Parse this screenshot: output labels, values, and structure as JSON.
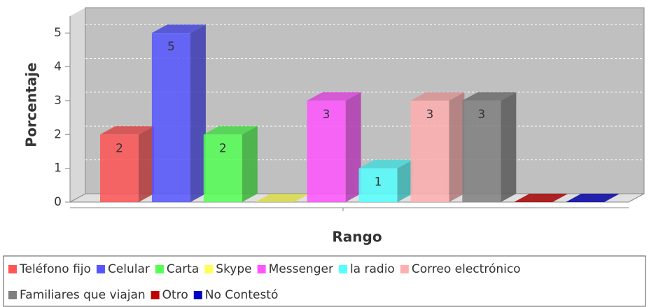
{
  "chart_data": {
    "type": "bar3d",
    "y_label": "Porcentaje",
    "x_label": "Rango",
    "ylim": [
      0,
      5.5
    ],
    "yticks": [
      0,
      1,
      2,
      3,
      4,
      5
    ],
    "grid": true,
    "series": [
      {
        "name": "Teléfono fijo",
        "color": "#ff5555",
        "values": [
          2
        ]
      },
      {
        "name": "Celular",
        "color": "#5555ff",
        "values": [
          5
        ]
      },
      {
        "name": "Carta",
        "color": "#55ff55",
        "values": [
          2
        ]
      },
      {
        "name": "Skype",
        "color": "#ffff55",
        "values": [
          0
        ]
      },
      {
        "name": "Messenger",
        "color": "#ff55ff",
        "values": [
          3
        ]
      },
      {
        "name": "la radio",
        "color": "#55ffff",
        "values": [
          1
        ]
      },
      {
        "name": "Correo electrónico",
        "color": "#ffafaf",
        "values": [
          3
        ]
      },
      {
        "name": "Familiares que viajan",
        "color": "#808080",
        "values": [
          3
        ]
      },
      {
        "name": "Otro",
        "color": "#c00000",
        "values": [
          0
        ]
      },
      {
        "name": "No Contestó",
        "color": "#0000c0",
        "values": [
          0
        ]
      }
    ]
  }
}
